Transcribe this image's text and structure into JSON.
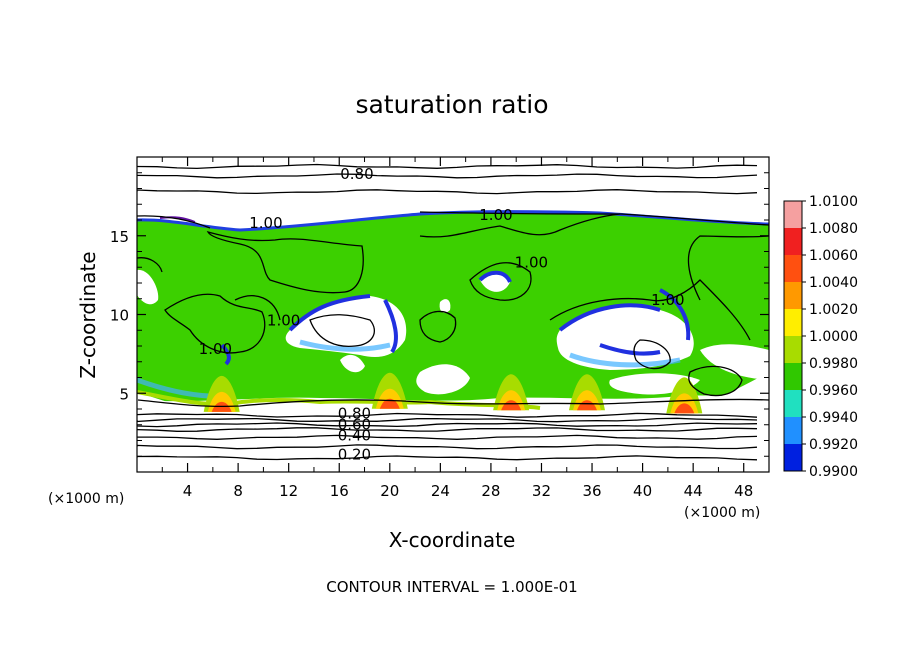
{
  "chart_data": {
    "type": "heatmap",
    "title": "saturation ratio",
    "xlabel": "X-coordinate",
    "ylabel": "Z-coordinate",
    "x_unit_left": "(×1000 m)",
    "x_unit_right": "(×1000 m)",
    "footer": "CONTOUR INTERVAL = 1.000E-01",
    "xlim": [
      0,
      50
    ],
    "ylim": [
      0,
      20
    ],
    "x_ticks": [
      "4",
      "8",
      "12",
      "16",
      "20",
      "24",
      "28",
      "32",
      "36",
      "40",
      "44",
      "48"
    ],
    "x_tick_values": [
      4,
      8,
      12,
      16,
      20,
      24,
      28,
      32,
      36,
      40,
      44,
      48
    ],
    "y_ticks": [
      "5",
      "10",
      "15"
    ],
    "y_tick_values": [
      5,
      10,
      15
    ],
    "colorbar": {
      "labels": [
        "1.0100",
        "1.0080",
        "1.0060",
        "1.0040",
        "1.0020",
        "1.0000",
        "0.9980",
        "0.9960",
        "0.9940",
        "0.9920",
        "0.9900"
      ],
      "colors": [
        "#f5a0a0",
        "#f02020",
        "#ff5010",
        "#ff9900",
        "#ffee00",
        "#a8dc00",
        "#30c800",
        "#20e0c0",
        "#2090ff",
        "#0020e0",
        "#4010a0"
      ]
    },
    "contour_labels": [
      {
        "text": "0.80",
        "x": 17.4,
        "z": 18.6
      },
      {
        "text": "1.00",
        "x": 10.2,
        "z": 15.5
      },
      {
        "text": "1.00",
        "x": 28.4,
        "z": 16.0
      },
      {
        "text": "1.00",
        "x": 31.2,
        "z": 13.0
      },
      {
        "text": "1.00",
        "x": 42.0,
        "z": 10.6
      },
      {
        "text": "1.00",
        "x": 11.6,
        "z": 9.3
      },
      {
        "text": "1.00",
        "x": 6.2,
        "z": 7.5
      },
      {
        "text": "0.80",
        "x": 17.2,
        "z": 3.4
      },
      {
        "text": "0.60",
        "x": 17.2,
        "z": 2.7
      },
      {
        "text": "0.40",
        "x": 17.2,
        "z": 2.0
      },
      {
        "text": "0.20",
        "x": 17.2,
        "z": 0.8
      }
    ],
    "supersat_hotspots": [
      {
        "x": 6.7,
        "z": 4.2
      },
      {
        "x": 20.0,
        "z": 4.4
      },
      {
        "x": 29.6,
        "z": 4.3
      },
      {
        "x": 35.6,
        "z": 4.3
      },
      {
        "x": 43.3,
        "z": 4.1
      }
    ],
    "stable_contours_z": [
      0.9,
      1.6,
      2.2,
      2.7,
      3.0,
      3.3,
      3.6,
      17.8,
      18.8,
      19.4
    ]
  }
}
